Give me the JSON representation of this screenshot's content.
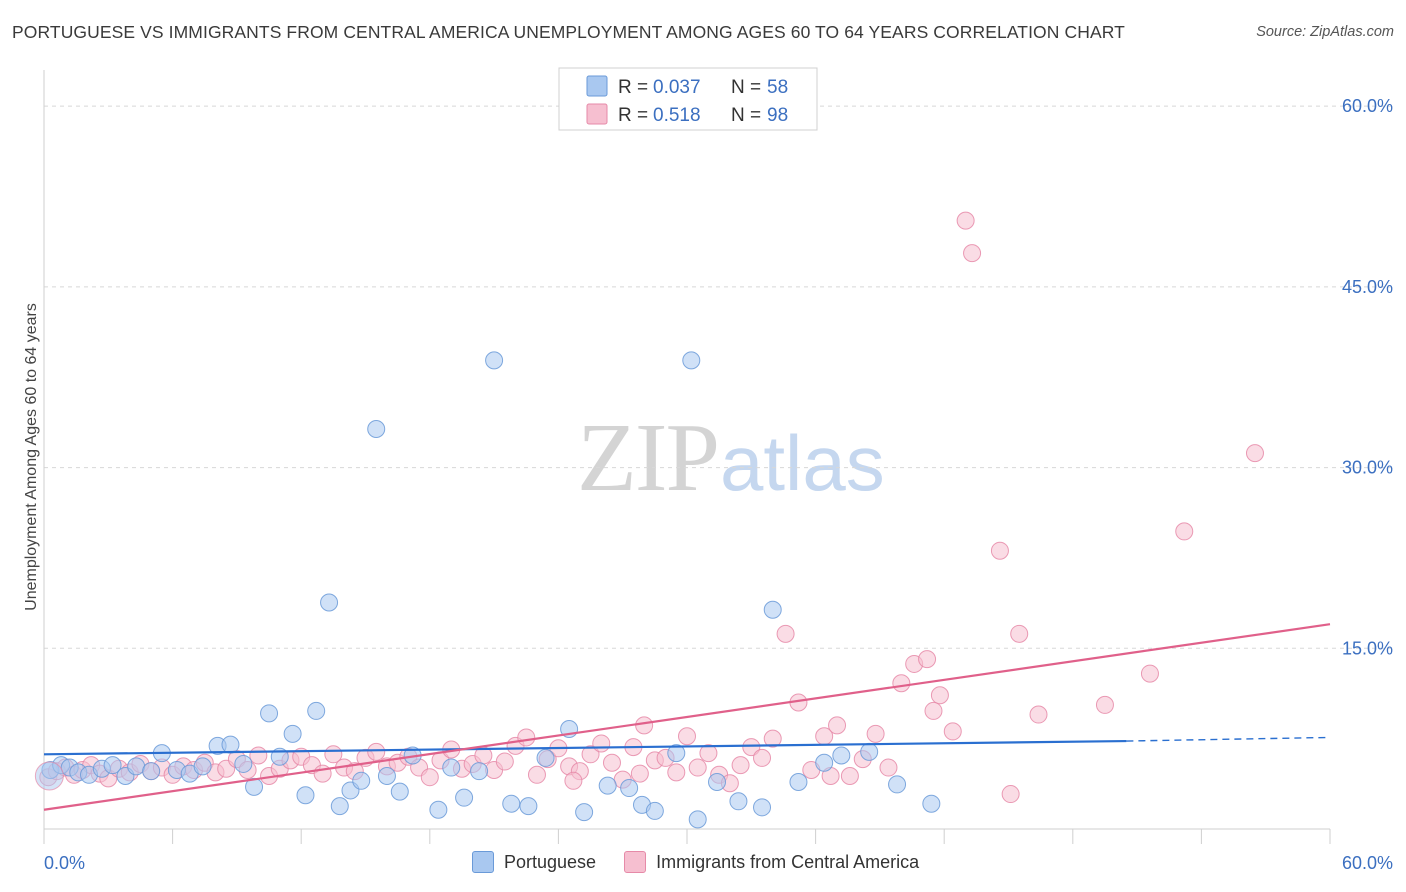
{
  "title": "PORTUGUESE VS IMMIGRANTS FROM CENTRAL AMERICA UNEMPLOYMENT AMONG AGES 60 TO 64 YEARS CORRELATION CHART",
  "source": "Source: ZipAtlas.com",
  "watermark": {
    "zip": "ZIP",
    "atlas": "atlas"
  },
  "colors": {
    "blue_fill": "#a9c8f0",
    "blue_stroke": "#6a9ad8",
    "blue_line": "#2a6fd0",
    "pink_fill": "#f6bfd0",
    "pink_stroke": "#e68aa8",
    "pink_line": "#e0608a",
    "value_text": "#3b6fc0",
    "grid": "#d8d8d8"
  },
  "legend_top": [
    {
      "name": "Portuguese",
      "r_label": "R =",
      "r_value": "0.037",
      "n_label": "N =",
      "n_value": "58"
    },
    {
      "name": "Immigrants from Central America",
      "r_label": "R =",
      "r_value": "0.518",
      "n_label": "N =",
      "n_value": "98"
    }
  ],
  "chart_data": {
    "type": "scatter",
    "title": "PORTUGUESE VS IMMIGRANTS FROM CENTRAL AMERICA UNEMPLOYMENT AMONG AGES 60 TO 64 YEARS CORRELATION CHART",
    "xlabel": "",
    "ylabel": "Unemployment Among Ages 60 to 64 years",
    "xlim": [
      0,
      60
    ],
    "ylim": [
      0,
      63
    ],
    "x_tick_labels": [
      "0.0%",
      "60.0%"
    ],
    "y_ticks": [
      15,
      30,
      45,
      60
    ],
    "y_tick_labels": [
      "15.0%",
      "30.0%",
      "45.0%",
      "60.0%"
    ],
    "legend_position": "top-center",
    "series": [
      {
        "name": "Portuguese",
        "color": "#a9c8f0",
        "trend": {
          "x0": 0,
          "y0": 6.2,
          "x1": 50.5,
          "y1": 7.3,
          "dashed_to_x": 60,
          "dashed_to_y": 7.6
        },
        "points": [
          [
            0.3,
            4.9
          ],
          [
            0.8,
            5.3
          ],
          [
            1.2,
            5.1
          ],
          [
            1.6,
            4.7
          ],
          [
            2.1,
            4.5
          ],
          [
            2.7,
            5.0
          ],
          [
            3.2,
            5.3
          ],
          [
            3.8,
            4.4
          ],
          [
            4.3,
            5.2
          ],
          [
            5.0,
            4.8
          ],
          [
            5.5,
            6.3
          ],
          [
            6.2,
            4.9
          ],
          [
            6.8,
            4.6
          ],
          [
            7.4,
            5.2
          ],
          [
            8.1,
            6.9
          ],
          [
            8.7,
            7.0
          ],
          [
            9.3,
            5.4
          ],
          [
            9.8,
            3.5
          ],
          [
            10.5,
            9.6
          ],
          [
            11.0,
            6.0
          ],
          [
            11.6,
            7.9
          ],
          [
            12.2,
            2.8
          ],
          [
            12.7,
            9.8
          ],
          [
            13.3,
            18.8
          ],
          [
            13.8,
            1.9
          ],
          [
            14.3,
            3.2
          ],
          [
            14.8,
            4.0
          ],
          [
            15.5,
            33.2
          ],
          [
            16.0,
            4.4
          ],
          [
            16.6,
            3.1
          ],
          [
            17.2,
            6.1
          ],
          [
            18.4,
            1.6
          ],
          [
            19.0,
            5.1
          ],
          [
            19.6,
            2.6
          ],
          [
            20.3,
            4.8
          ],
          [
            21.0,
            38.9
          ],
          [
            21.8,
            2.1
          ],
          [
            22.6,
            1.9
          ],
          [
            23.4,
            5.9
          ],
          [
            24.5,
            8.3
          ],
          [
            25.2,
            1.4
          ],
          [
            26.3,
            3.6
          ],
          [
            27.3,
            3.4
          ],
          [
            27.9,
            2.0
          ],
          [
            28.5,
            1.5
          ],
          [
            29.5,
            6.3
          ],
          [
            30.5,
            0.8
          ],
          [
            30.2,
            38.9
          ],
          [
            31.4,
            3.9
          ],
          [
            32.4,
            2.3
          ],
          [
            33.5,
            1.8
          ],
          [
            34.0,
            18.2
          ],
          [
            35.2,
            3.9
          ],
          [
            36.4,
            5.5
          ],
          [
            37.2,
            6.1
          ],
          [
            38.5,
            6.4
          ],
          [
            39.8,
            3.7
          ],
          [
            41.4,
            2.1
          ]
        ]
      },
      {
        "name": "Immigrants from Central America",
        "color": "#f6bfd0",
        "trend": {
          "x0": 0,
          "y0": 1.6,
          "x1": 60,
          "y1": 17.0
        },
        "points": [
          [
            0.2,
            4.3
          ],
          [
            0.6,
            4.8
          ],
          [
            1.0,
            5.1
          ],
          [
            1.4,
            4.5
          ],
          [
            1.8,
            4.9
          ],
          [
            2.2,
            5.3
          ],
          [
            2.6,
            4.6
          ],
          [
            3.0,
            4.2
          ],
          [
            3.5,
            5.0
          ],
          [
            4.0,
            4.7
          ],
          [
            4.5,
            5.4
          ],
          [
            5.0,
            4.8
          ],
          [
            5.5,
            5.1
          ],
          [
            6.0,
            4.5
          ],
          [
            6.5,
            5.2
          ],
          [
            7.0,
            4.9
          ],
          [
            7.5,
            5.5
          ],
          [
            8.0,
            4.7
          ],
          [
            8.5,
            5.0
          ],
          [
            9.0,
            5.8
          ],
          [
            9.5,
            4.9
          ],
          [
            10.0,
            6.1
          ],
          [
            10.5,
            4.4
          ],
          [
            11.0,
            5.0
          ],
          [
            11.5,
            5.7
          ],
          [
            12.0,
            6.0
          ],
          [
            12.5,
            5.3
          ],
          [
            13.0,
            4.6
          ],
          [
            13.5,
            6.2
          ],
          [
            14.0,
            5.1
          ],
          [
            14.5,
            4.8
          ],
          [
            15.0,
            5.9
          ],
          [
            15.5,
            6.4
          ],
          [
            16.0,
            5.2
          ],
          [
            16.5,
            5.5
          ],
          [
            17.0,
            6.0
          ],
          [
            17.5,
            5.1
          ],
          [
            18.0,
            4.3
          ],
          [
            18.5,
            5.7
          ],
          [
            19.0,
            6.6
          ],
          [
            19.5,
            5.0
          ],
          [
            20.0,
            5.4
          ],
          [
            20.5,
            6.1
          ],
          [
            21.0,
            4.9
          ],
          [
            21.5,
            5.6
          ],
          [
            22.0,
            6.9
          ],
          [
            22.5,
            7.6
          ],
          [
            23.0,
            4.5
          ],
          [
            23.5,
            5.8
          ],
          [
            24.0,
            6.7
          ],
          [
            24.5,
            5.2
          ],
          [
            25.0,
            4.8
          ],
          [
            25.5,
            6.2
          ],
          [
            26.0,
            7.1
          ],
          [
            26.5,
            5.5
          ],
          [
            27.0,
            4.1
          ],
          [
            27.5,
            6.8
          ],
          [
            28.0,
            8.6
          ],
          [
            28.5,
            5.7
          ],
          [
            29.0,
            5.9
          ],
          [
            29.5,
            4.7
          ],
          [
            30.0,
            7.7
          ],
          [
            30.5,
            5.1
          ],
          [
            31.0,
            6.3
          ],
          [
            31.5,
            4.5
          ],
          [
            32.0,
            3.8
          ],
          [
            32.5,
            5.3
          ],
          [
            33.0,
            6.8
          ],
          [
            33.5,
            5.9
          ],
          [
            34.0,
            7.5
          ],
          [
            34.6,
            16.2
          ],
          [
            35.2,
            10.5
          ],
          [
            35.8,
            4.9
          ],
          [
            36.4,
            7.7
          ],
          [
            37.0,
            8.6
          ],
          [
            37.6,
            4.4
          ],
          [
            38.2,
            5.8
          ],
          [
            38.8,
            7.9
          ],
          [
            39.4,
            5.1
          ],
          [
            40.0,
            12.1
          ],
          [
            40.6,
            13.7
          ],
          [
            41.2,
            14.1
          ],
          [
            41.8,
            11.1
          ],
          [
            42.4,
            8.1
          ],
          [
            43.0,
            50.5
          ],
          [
            43.3,
            47.8
          ],
          [
            44.6,
            23.1
          ],
          [
            45.1,
            2.9
          ],
          [
            46.4,
            9.5
          ],
          [
            49.5,
            10.3
          ],
          [
            51.6,
            12.9
          ],
          [
            53.2,
            24.7
          ],
          [
            56.5,
            31.2
          ],
          [
            24.7,
            4.0
          ],
          [
            27.8,
            4.6
          ],
          [
            36.7,
            4.4
          ],
          [
            41.5,
            9.8
          ],
          [
            45.5,
            16.2
          ]
        ]
      }
    ]
  }
}
